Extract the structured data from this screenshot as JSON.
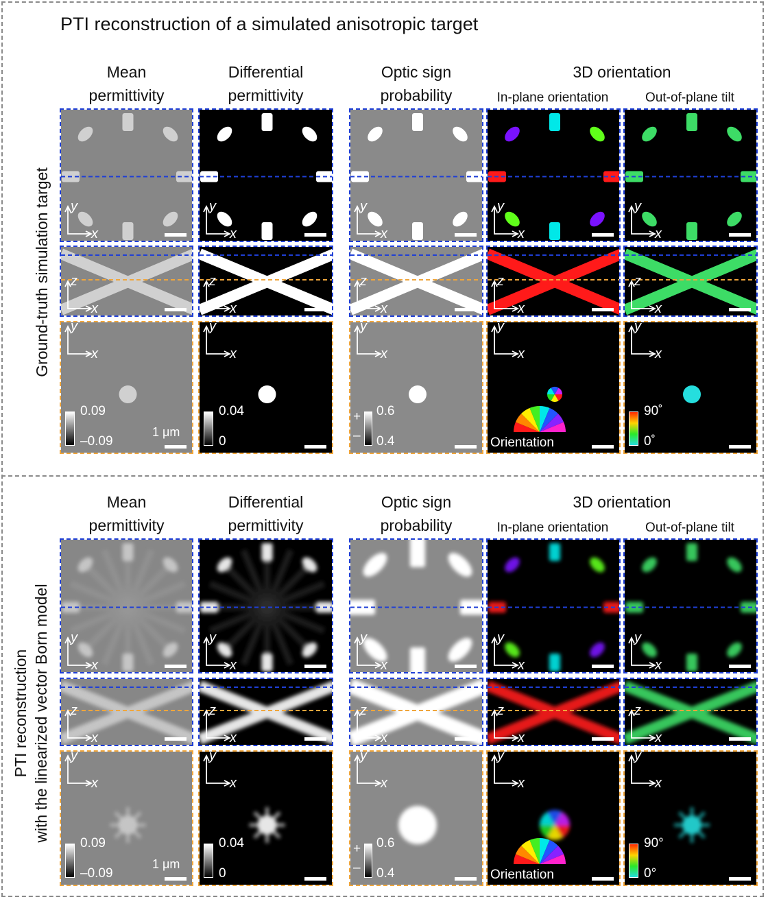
{
  "figure_title": "PTI reconstruction of a simulated anisotropic target",
  "sections": [
    {
      "row_label_lines": [
        "Ground-truth simulation target"
      ],
      "col_headers": {
        "mean": [
          "Mean",
          "permittivity"
        ],
        "diff": [
          "Differential",
          "permittivity"
        ],
        "optic": [
          "Optic sign",
          "probability"
        ],
        "orient": "3D orientation",
        "inplane": "In-plane orientation",
        "tilt": "Out-of-plane tilt"
      },
      "colorbars": {
        "mean": {
          "max": "0.09",
          "min": "–0.09"
        },
        "diff": {
          "max": "0.04",
          "min": "0"
        },
        "optic": {
          "max": "0.6",
          "min": "0.4",
          "plus": "+",
          "minus": "–"
        },
        "inplane": {
          "label": "Orientation"
        },
        "tilt": {
          "max": "90˚",
          "min": "0˚"
        }
      },
      "scale_text": "1 μm"
    },
    {
      "row_label_lines": [
        "PTI reconstruction",
        "with the linearized vector Born model"
      ],
      "col_headers": {
        "mean": [
          "Mean",
          "permittivity"
        ],
        "diff": [
          "Differential",
          "permittivity"
        ],
        "optic": [
          "Optic sign",
          "probability"
        ],
        "orient": "3D orientation",
        "inplane": "In-plane orientation",
        "tilt": "Out-of-plane tilt"
      },
      "colorbars": {
        "mean": {
          "max": "0.09",
          "min": "–0.09"
        },
        "diff": {
          "max": "0.04",
          "min": "0"
        },
        "optic": {
          "max": "0.6",
          "min": "0.4",
          "plus": "+",
          "minus": "–"
        },
        "inplane": {
          "label": "Orientation"
        },
        "tilt": {
          "max": "90°",
          "min": "0°"
        }
      },
      "scale_text": "1 μm"
    }
  ],
  "axis_labels": {
    "x": "x",
    "y": "y",
    "z": "z"
  },
  "colors": {
    "xy_panel_border": "#1f3fd6",
    "xz_panel_border": "#1f3fd6",
    "z_panel_border": "#f0a63c",
    "mean_bg": "#878787",
    "mean_feature": "#d0d0d0",
    "optic_bg": "#8a8a8a",
    "inplane_top": "#00e8e8",
    "inplane_bottom": "#00e8e8",
    "inplane_left_right": "#ff1a1a",
    "inplane_diag_a": "#7a12ff",
    "inplane_diag_b": "#60ff1a",
    "tilt_green": "#3ddc66",
    "tilt_cyan": "#25dede"
  }
}
